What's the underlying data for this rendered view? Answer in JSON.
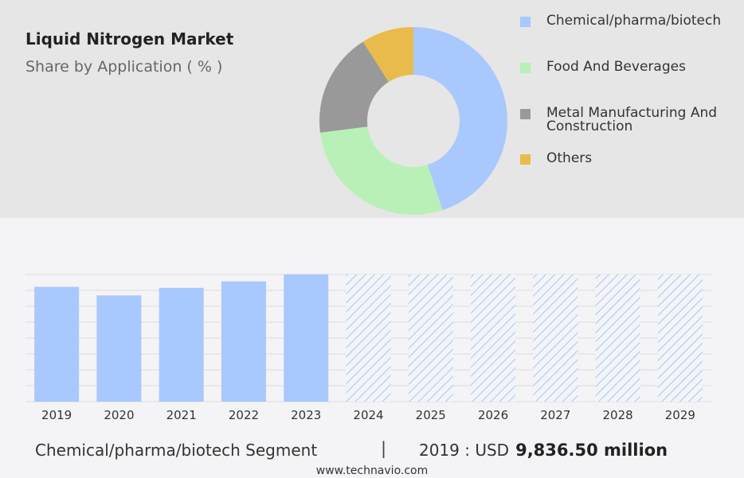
{
  "header": {
    "title": "Liquid Nitrogen Market",
    "subtitle": "Share by Application ( % )"
  },
  "chart_data": [
    {
      "type": "pie",
      "subtype": "donut",
      "slices": [
        {
          "label": "Chemical/pharma/biotech",
          "value": 45,
          "color": "#a9c8fd"
        },
        {
          "label": "Food And Beverages",
          "value": 28,
          "color": "#b9f0b7"
        },
        {
          "label": "Metal Manufacturing And Construction",
          "value": 18,
          "color": "#999999"
        },
        {
          "label": "Others",
          "value": 9,
          "color": "#e9bb4c"
        }
      ],
      "legend_placement": "right"
    },
    {
      "type": "bar",
      "categories": [
        "2019",
        "2020",
        "2021",
        "2022",
        "2023",
        "2024",
        "2025",
        "2026",
        "2027",
        "2028",
        "2029"
      ],
      "values": [
        9836.5,
        9100,
        9750,
        10300,
        10900,
        null,
        null,
        null,
        null,
        null,
        null
      ],
      "forecast_categories": [
        "2024",
        "2025",
        "2026",
        "2027",
        "2028",
        "2029"
      ],
      "bar_color": "#a9c8fd",
      "forecast_style": "hatched",
      "grid": true,
      "ylim": [
        0,
        10900
      ]
    }
  ],
  "footer": {
    "segment_label": "Chemical/pharma/biotech Segment",
    "separator": "|",
    "year_text": "2019 : USD",
    "amount": "9,836.50 million"
  },
  "source": "www.technavio.com"
}
